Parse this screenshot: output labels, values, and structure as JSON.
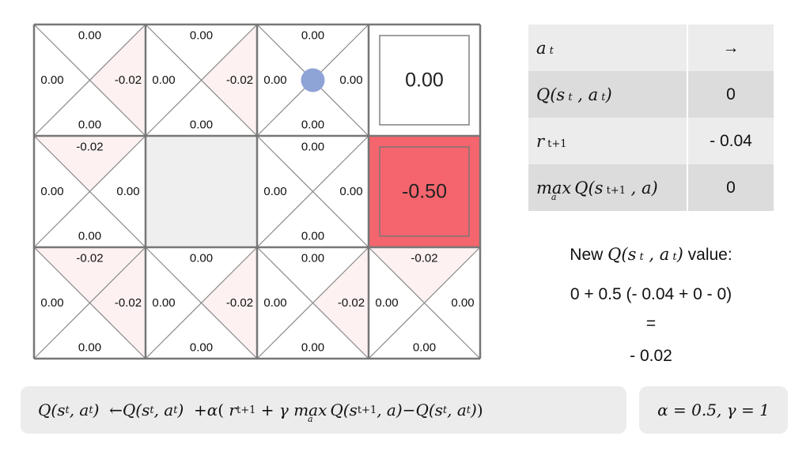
{
  "grid": {
    "rows": [
      [
        {
          "type": "q",
          "up": "0.00",
          "left": "0.00",
          "right": "-0.02",
          "down": "0.00",
          "neg": [
            "right"
          ]
        },
        {
          "type": "q",
          "up": "0.00",
          "left": "0.00",
          "right": "-0.02",
          "down": "0.00",
          "neg": [
            "right"
          ]
        },
        {
          "type": "q",
          "up": "0.00",
          "left": "0.00",
          "right": "0.00",
          "down": "0.00",
          "neg": [],
          "agent": true
        },
        {
          "type": "terminal",
          "value": "0.00",
          "color": "#ffffff"
        }
      ],
      [
        {
          "type": "q",
          "up": "-0.02",
          "left": "0.00",
          "right": "0.00",
          "down": "0.00",
          "neg": [
            "up"
          ]
        },
        {
          "type": "wall",
          "color": "#efefef"
        },
        {
          "type": "q",
          "up": "0.00",
          "left": "0.00",
          "right": "0.00",
          "down": "0.00",
          "neg": []
        },
        {
          "type": "terminal",
          "value": "-0.50",
          "color": "#f4656d"
        }
      ],
      [
        {
          "type": "q",
          "up": "-0.02",
          "left": "0.00",
          "right": "-0.02",
          "down": "0.00",
          "neg": [
            "up",
            "right"
          ]
        },
        {
          "type": "q",
          "up": "0.00",
          "left": "0.00",
          "right": "-0.02",
          "down": "0.00",
          "neg": [
            "right"
          ]
        },
        {
          "type": "q",
          "up": "0.00",
          "left": "0.00",
          "right": "-0.02",
          "down": "0.00",
          "neg": [
            "right"
          ]
        },
        {
          "type": "q",
          "up": "-0.02",
          "left": "0.00",
          "right": "0.00",
          "down": "0.00",
          "neg": [
            "up"
          ]
        }
      ]
    ],
    "agent_color": "#8ea3d6",
    "neg_tint": "#fdf1f1",
    "line_color": "#888888"
  },
  "info": {
    "action_arrow": "→",
    "q_value": "0",
    "reward_value": "- 0.04",
    "max_q_value": "0"
  },
  "calc": {
    "heading_prefix": "New",
    "heading_suffix": "value:",
    "expression": "0 + 0.5 (- 0.04 + 0 - 0)",
    "equals": "=",
    "result": "- 0.02"
  },
  "params": "α = 0.5, γ = 1"
}
